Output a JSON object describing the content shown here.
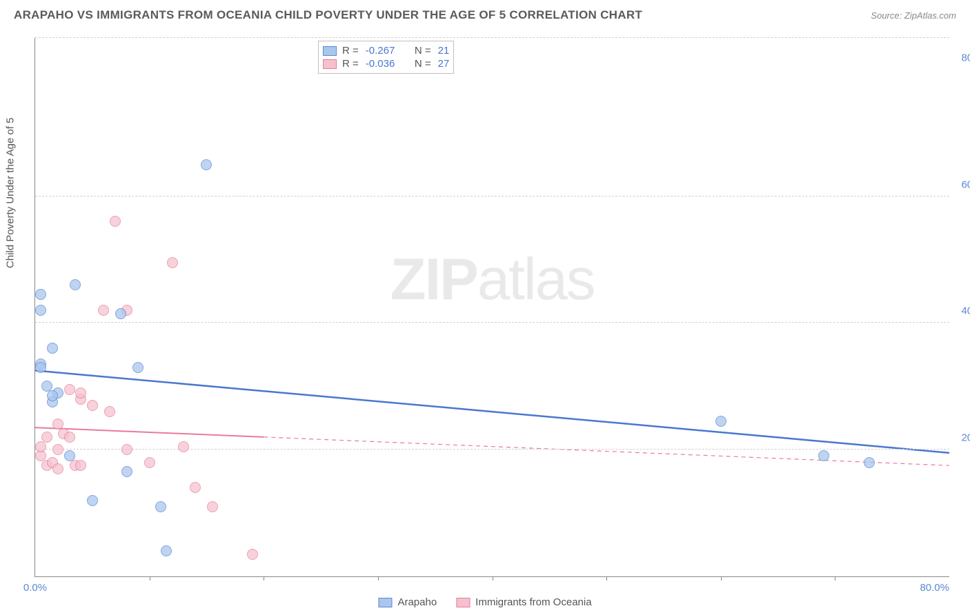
{
  "header": {
    "title": "ARAPAHO VS IMMIGRANTS FROM OCEANIA CHILD POVERTY UNDER THE AGE OF 5 CORRELATION CHART",
    "source_label": "Source:",
    "source_value": "ZipAtlas.com"
  },
  "chart": {
    "type": "scatter",
    "yaxis_title": "Child Poverty Under the Age of 5",
    "xlim": [
      0,
      80
    ],
    "ylim": [
      0,
      85
    ],
    "xtick_labels": [
      {
        "value": 0,
        "label": "0.0%"
      },
      {
        "value": 80,
        "label": "80.0%"
      }
    ],
    "ytick_labels": [
      {
        "value": 20,
        "label": "20.0%"
      },
      {
        "value": 40,
        "label": "40.0%"
      },
      {
        "value": 60,
        "label": "60.0%"
      },
      {
        "value": 80,
        "label": "80.0%"
      }
    ],
    "gridlines_y": [
      20,
      40,
      60,
      85
    ],
    "xtick_marks": [
      10,
      20,
      30,
      40,
      50,
      60,
      70
    ],
    "background_color": "#ffffff",
    "grid_color": "#d0d0d0",
    "axis_color": "#888888",
    "tick_font_color": "#5b88d6",
    "label_font_color": "#555555",
    "series": [
      {
        "name": "Arapaho",
        "fill_color": "#a9c6ec",
        "stroke_color": "#5b88d6",
        "marker_opacity": 0.75,
        "marker_size": 16,
        "stats": {
          "R": "-0.267",
          "N": "21"
        },
        "trend": {
          "x1": 0,
          "y1": 32.5,
          "x2": 80,
          "y2": 19.5,
          "solid_until_x": 80,
          "color": "#4a77cf",
          "width": 2.5
        },
        "points": [
          {
            "x": 0.5,
            "y": 44.5
          },
          {
            "x": 0.5,
            "y": 42
          },
          {
            "x": 1.5,
            "y": 36
          },
          {
            "x": 0.5,
            "y": 33.5
          },
          {
            "x": 0.5,
            "y": 33
          },
          {
            "x": 1,
            "y": 30
          },
          {
            "x": 2,
            "y": 29
          },
          {
            "x": 1.5,
            "y": 27.5
          },
          {
            "x": 1.5,
            "y": 28.5
          },
          {
            "x": 3.5,
            "y": 46
          },
          {
            "x": 5,
            "y": 12
          },
          {
            "x": 8,
            "y": 16.5
          },
          {
            "x": 7.5,
            "y": 41.5
          },
          {
            "x": 9,
            "y": 33
          },
          {
            "x": 11,
            "y": 11
          },
          {
            "x": 11.5,
            "y": 4
          },
          {
            "x": 15,
            "y": 65
          },
          {
            "x": 60,
            "y": 24.5
          },
          {
            "x": 69,
            "y": 19
          },
          {
            "x": 73,
            "y": 18
          },
          {
            "x": 3,
            "y": 19
          }
        ]
      },
      {
        "name": "Immigrants from Oceania",
        "fill_color": "#f4c2ce",
        "stroke_color": "#e87a9a",
        "marker_opacity": 0.72,
        "marker_size": 16,
        "stats": {
          "R": "-0.036",
          "N": "27"
        },
        "trend": {
          "x1": 0,
          "y1": 23.5,
          "x2": 80,
          "y2": 17.5,
          "solid_until_x": 20,
          "color": "#e87a9a",
          "width": 2
        },
        "points": [
          {
            "x": 0.5,
            "y": 19
          },
          {
            "x": 0.5,
            "y": 20.5
          },
          {
            "x": 1,
            "y": 22
          },
          {
            "x": 1,
            "y": 17.5
          },
          {
            "x": 1.5,
            "y": 18
          },
          {
            "x": 2,
            "y": 24
          },
          {
            "x": 2.5,
            "y": 22.5
          },
          {
            "x": 2,
            "y": 20
          },
          {
            "x": 2,
            "y": 17
          },
          {
            "x": 3,
            "y": 22
          },
          {
            "x": 3.5,
            "y": 17.5
          },
          {
            "x": 3,
            "y": 29.5
          },
          {
            "x": 4,
            "y": 28
          },
          {
            "x": 4,
            "y": 29
          },
          {
            "x": 4,
            "y": 17.5
          },
          {
            "x": 5,
            "y": 27
          },
          {
            "x": 6,
            "y": 42
          },
          {
            "x": 6.5,
            "y": 26
          },
          {
            "x": 7,
            "y": 56
          },
          {
            "x": 8,
            "y": 42
          },
          {
            "x": 8,
            "y": 20
          },
          {
            "x": 10,
            "y": 18
          },
          {
            "x": 12,
            "y": 49.5
          },
          {
            "x": 13,
            "y": 20.5
          },
          {
            "x": 14,
            "y": 14
          },
          {
            "x": 15.5,
            "y": 11
          },
          {
            "x": 19,
            "y": 3.5
          }
        ]
      }
    ]
  },
  "legend_top": {
    "r_label": "R =",
    "n_label": "N ="
  },
  "legend_bottom": {
    "items": [
      {
        "label": "Arapaho",
        "fill": "#a9c6ec",
        "stroke": "#5b88d6"
      },
      {
        "label": "Immigrants from Oceania",
        "fill": "#f4c2ce",
        "stroke": "#e87a9a"
      }
    ]
  },
  "watermark": {
    "part1": "ZIP",
    "part2": "atlas"
  }
}
